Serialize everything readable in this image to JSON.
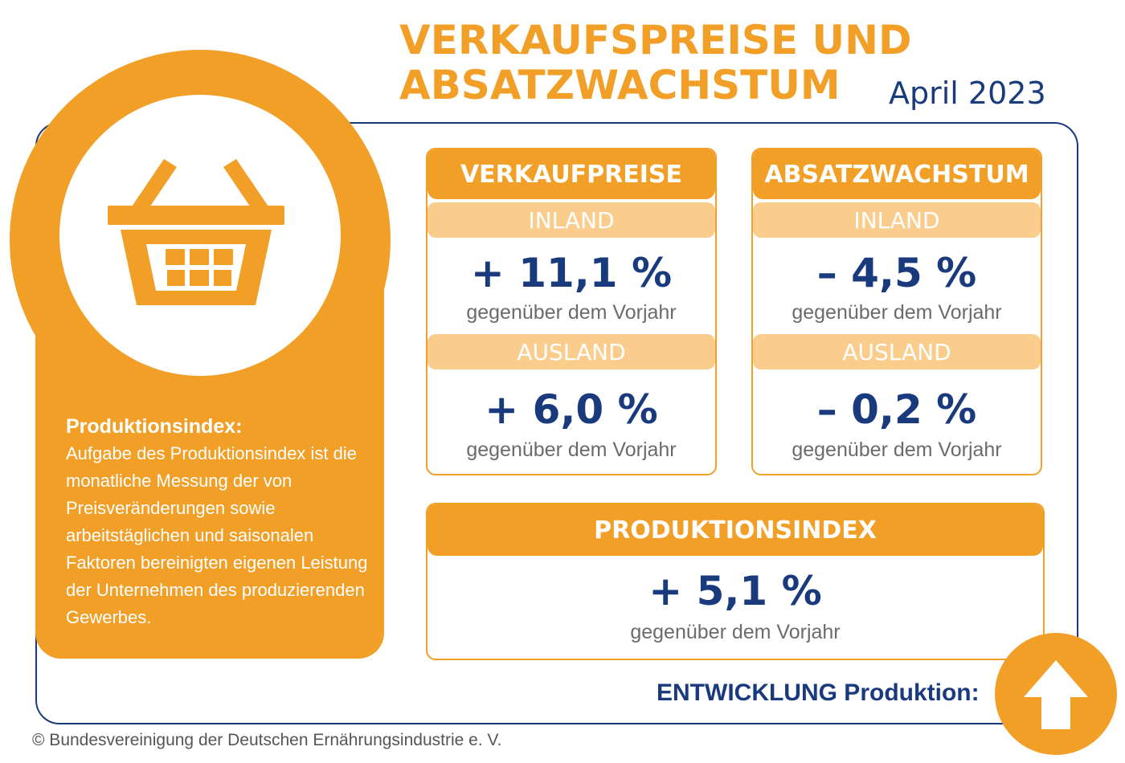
{
  "header": {
    "title_line1": "VERKAUFSPREISE UND",
    "title_line2": "ABSATZWACHSTUM",
    "date": "April 2023"
  },
  "info": {
    "heading": "Produktionsindex:",
    "text": "Aufgabe des Produktionsindex ist die monatliche Messung der von Preisveränderungen sowie arbeitstäglichen und saisonalen Faktoren bereinigten eigenen Leistung der Unternehmen des produzierenden Gewerbes."
  },
  "verkaufpreise": {
    "title": "VERKAUFPREISE",
    "inland_label": "INLAND",
    "inland_value": "+ 11,1 %",
    "inland_caption": "gegenüber dem Vorjahr",
    "ausland_label": "AUSLAND",
    "ausland_value": "+ 6,0 %",
    "ausland_caption": "gegenüber dem Vorjahr"
  },
  "absatzwachstum": {
    "title": "ABSATZWACHSTUM",
    "inland_label": "INLAND",
    "inland_value": "– 4,5 %",
    "inland_caption": "gegenüber dem Vorjahr",
    "ausland_label": "AUSLAND",
    "ausland_value": "– 0,2 %",
    "ausland_caption": "gegenüber dem Vorjahr"
  },
  "produktionsindex": {
    "title": "PRODUKTIONSINDEX",
    "value": "+ 5,1 %",
    "caption": "gegenüber dem Vorjahr"
  },
  "entwicklung": {
    "label": "ENTWICKLUNG Produktion:",
    "icon": "arrow-up-icon"
  },
  "footer": {
    "copyright": "© Bundesvereinigung der Deutschen Ernährungsindustrie e. V."
  },
  "colors": {
    "accent": "#f29f28",
    "accent_light": "#fbcd8d",
    "navy": "#1a3a7e",
    "caption_gray": "#6b6b6b"
  },
  "icons": [
    "shopping-basket-icon",
    "arrow-up-icon"
  ]
}
